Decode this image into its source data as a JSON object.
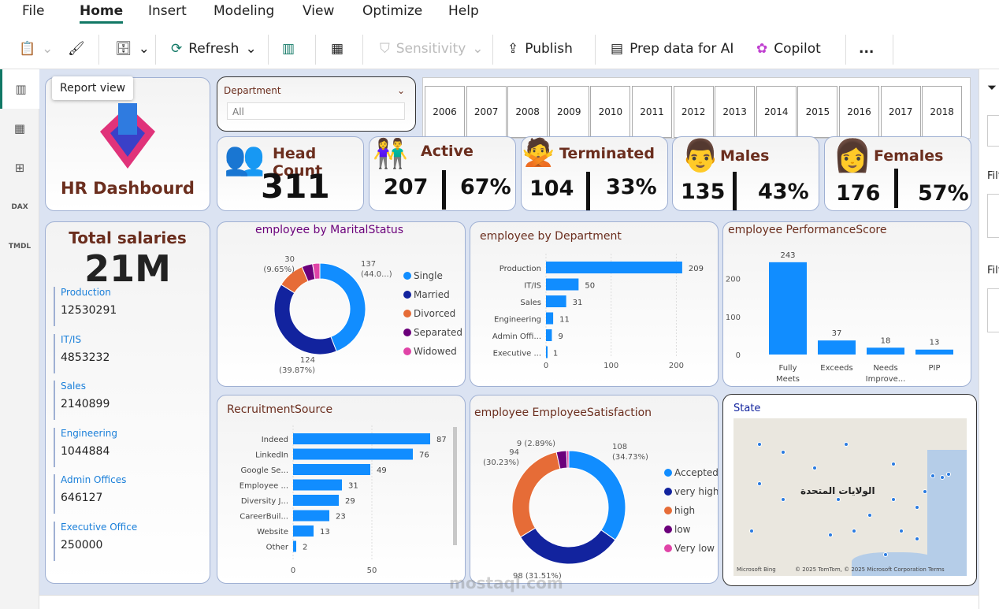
{
  "menu": [
    "File",
    "Home",
    "Insert",
    "Modeling",
    "View",
    "Optimize",
    "Help"
  ],
  "toolbar": {
    "refresh": "Refresh",
    "sensitivity": "Sensitivity",
    "publish": "Publish",
    "prep": "Prep data for AI",
    "copilot": "Copilot",
    "more": "..."
  },
  "tooltip": "Report view",
  "rail": [
    "report-view",
    "table-view",
    "model-view",
    "DAX",
    "TMDL"
  ],
  "logo_title": "HR Dashbourd",
  "slicer": {
    "label": "Department",
    "value": "All"
  },
  "years": [
    "2006",
    "2007",
    "2008",
    "2009",
    "2010",
    "2011",
    "2012",
    "2013",
    "2014",
    "2015",
    "2016",
    "2017",
    "2018"
  ],
  "kpis": {
    "headcount": {
      "label": "Head Count",
      "value": "311"
    },
    "active": {
      "label": "Active",
      "count": "207",
      "pct": "67%"
    },
    "terminated": {
      "label": "Terminated",
      "count": "104",
      "pct": "33%"
    },
    "males": {
      "label": "Males",
      "count": "135",
      "pct": "43%"
    },
    "females": {
      "label": "Females",
      "count": "176",
      "pct": "57%"
    }
  },
  "salaries": {
    "title": "Total salaries",
    "total": "21M",
    "items": [
      {
        "dept": "Production",
        "value": "12530291"
      },
      {
        "dept": "IT/IS",
        "value": "4853232"
      },
      {
        "dept": "Sales",
        "value": "2140899"
      },
      {
        "dept": "Engineering",
        "value": "1044884"
      },
      {
        "dept": "Admin Offices",
        "value": "646127"
      },
      {
        "dept": "Executive Office",
        "value": "250000"
      }
    ]
  },
  "map": {
    "title": "State",
    "label": "الولايات المتحدة",
    "attribution": "© 2025 TomTom, © 2025 Microsoft Corporation Terms",
    "bing": "Microsoft Bing"
  },
  "right_pane": {
    "filter1": "Filt",
    "filter2": "Filt"
  },
  "watermark": "mostaql.com",
  "chart_data": [
    {
      "type": "pie",
      "title": "employee by MaritalStatus",
      "categories": [
        "Single",
        "Married",
        "Divorced",
        "Separated",
        "Widowed"
      ],
      "values": [
        137,
        124,
        30,
        12,
        8
      ],
      "labels": [
        "137\n(44.0...)",
        "124\n(39.87%)",
        "30\n(9.65%)",
        "",
        ""
      ],
      "colors": [
        "#118dff",
        "#12239e",
        "#e66c37",
        "#6b007b",
        "#e044a7"
      ],
      "legend": "right"
    },
    {
      "type": "bar",
      "orientation": "horizontal",
      "title": "employee by Department",
      "categories": [
        "Production",
        "IT/IS",
        "Sales",
        "Engineering",
        "Admin Offi...",
        "Executive ..."
      ],
      "values": [
        209,
        50,
        31,
        11,
        9,
        1
      ],
      "xticks": [
        "0",
        "100",
        "200"
      ],
      "xlim": [
        0,
        220
      ],
      "color": "#118dff"
    },
    {
      "type": "bar",
      "title": "employee PerformanceScore",
      "categories": [
        "Fully Meets",
        "Exceeds",
        "Needs Improve...",
        "PIP"
      ],
      "values": [
        243,
        37,
        18,
        13
      ],
      "yticks": [
        "0",
        "100",
        "200"
      ],
      "ylim": [
        0,
        280
      ],
      "color": "#118dff"
    },
    {
      "type": "bar",
      "orientation": "horizontal",
      "title": "RecruitmentSource",
      "categories": [
        "Indeed",
        "LinkedIn",
        "Google Se...",
        "Employee ...",
        "Diversity J...",
        "CareerBuil...",
        "Website",
        "Other"
      ],
      "values": [
        87,
        76,
        49,
        31,
        29,
        23,
        13,
        2
      ],
      "xticks": [
        "0",
        "50"
      ],
      "xlim": [
        0,
        90
      ],
      "color": "#118dff"
    },
    {
      "type": "pie",
      "title": "employee EmployeeSatisfaction",
      "categories": [
        "Accepted",
        "very high",
        "high",
        "low",
        "Very low"
      ],
      "values": [
        108,
        98,
        94,
        9,
        2
      ],
      "labels": [
        "108\n(34.73%)",
        "98 (31.51%)",
        "94\n(30.23%)",
        "9 (2.89%)",
        ""
      ],
      "colors": [
        "#118dff",
        "#12239e",
        "#e66c37",
        "#6b007b",
        "#e044a7"
      ],
      "legend": "right"
    }
  ]
}
